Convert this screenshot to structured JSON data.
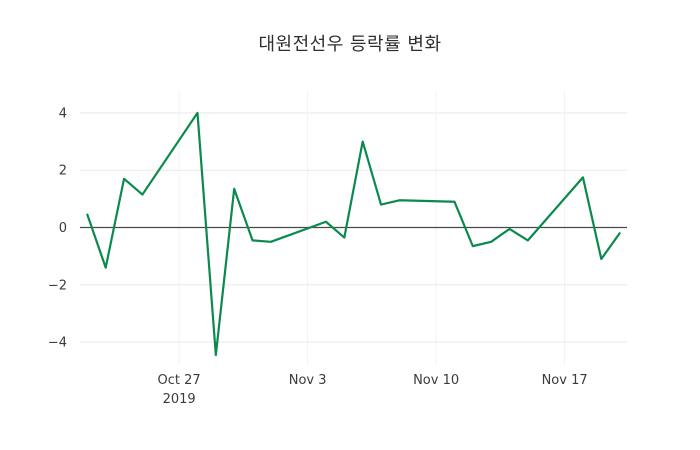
{
  "chart": {
    "title": "대원전선우 등락률 변화",
    "line_color": "#0a8a4c",
    "zero_line_color": "#4a4a4a",
    "h_grid_color": "#e9e9e9",
    "v_grid_color": "#f2f2f2",
    "tick_text_color": "#3b3b3b",
    "background_color": "#ffffff"
  },
  "chart_data": {
    "type": "line",
    "title": "대원전선우 등락률 변화",
    "series_name": "등락률",
    "x": [
      "2019-10-22",
      "2019-10-23",
      "2019-10-24",
      "2019-10-25",
      "2019-10-28",
      "2019-10-29",
      "2019-10-30",
      "2019-10-31",
      "2019-11-01",
      "2019-11-04",
      "2019-11-05",
      "2019-11-06",
      "2019-11-07",
      "2019-11-08",
      "2019-11-11",
      "2019-11-12",
      "2019-11-13",
      "2019-11-14",
      "2019-11-15",
      "2019-11-18",
      "2019-11-19",
      "2019-11-20"
    ],
    "values": [
      0.45,
      -1.4,
      1.7,
      1.15,
      4.0,
      -4.45,
      1.35,
      -0.45,
      -0.5,
      0.2,
      -0.35,
      3.0,
      0.8,
      0.95,
      0.9,
      -0.65,
      -0.5,
      -0.05,
      -0.45,
      1.75,
      -1.1,
      -0.2
    ],
    "xlabel": "",
    "ylabel": "",
    "ylim": [
      -4.8,
      4.8
    ],
    "yticks": [
      -4,
      -2,
      0,
      2,
      4
    ],
    "ytick_labels": [
      "−4",
      "−2",
      "0",
      "2",
      "4"
    ],
    "xticks": [
      {
        "date": "2019-10-27",
        "label": "Oct 27",
        "sublabel": "2019"
      },
      {
        "date": "2019-11-03",
        "label": "Nov 3",
        "sublabel": ""
      },
      {
        "date": "2019-11-10",
        "label": "Nov 10",
        "sublabel": ""
      },
      {
        "date": "2019-11-17",
        "label": "Nov 17",
        "sublabel": ""
      }
    ],
    "grid": true,
    "legend_position": "none",
    "zero_line": true
  }
}
